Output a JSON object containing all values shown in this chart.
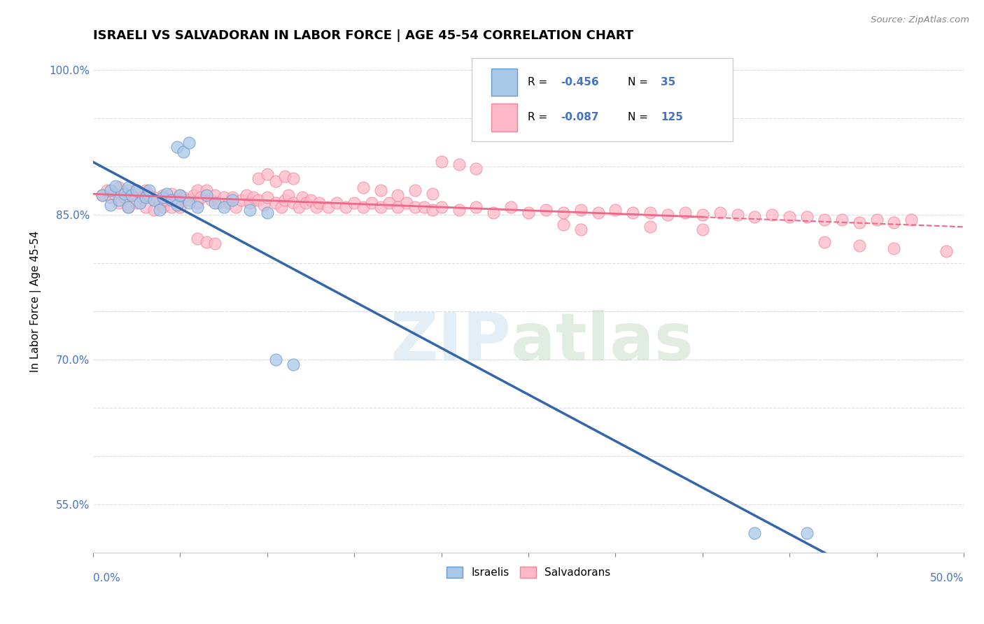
{
  "title": "ISRAELI VS SALVADORAN IN LABOR FORCE | AGE 45-54 CORRELATION CHART",
  "source_text": "Source: ZipAtlas.com",
  "ylabel": "In Labor Force | Age 45-54",
  "xlim": [
    0.0,
    0.5
  ],
  "ylim": [
    0.5,
    1.02
  ],
  "color_israeli": "#A8C8E8",
  "color_israeli_edge": "#6699CC",
  "color_salvadoran": "#FFB8C8",
  "color_salvadoran_edge": "#EE8899",
  "color_israeli_line": "#3366AA",
  "color_salvadoran_line": "#EE6688",
  "color_axis_labels": "#4472C4",
  "watermark_color": "#C8DFF0",
  "israeli_x": [
    0.005,
    0.01,
    0.01,
    0.013,
    0.015,
    0.018,
    0.02,
    0.02,
    0.022,
    0.025,
    0.027,
    0.03,
    0.032,
    0.035,
    0.038,
    0.04,
    0.042,
    0.045,
    0.048,
    0.05,
    0.055,
    0.06,
    0.065,
    0.07,
    0.075,
    0.08,
    0.09,
    0.1,
    0.048,
    0.052,
    0.055,
    0.105,
    0.115,
    0.38,
    0.41
  ],
  "israeli_y": [
    0.87,
    0.875,
    0.86,
    0.88,
    0.865,
    0.872,
    0.878,
    0.858,
    0.87,
    0.875,
    0.862,
    0.868,
    0.875,
    0.865,
    0.855,
    0.868,
    0.872,
    0.865,
    0.86,
    0.87,
    0.862,
    0.858,
    0.87,
    0.862,
    0.858,
    0.865,
    0.855,
    0.852,
    0.92,
    0.915,
    0.925,
    0.7,
    0.695,
    0.52,
    0.52
  ],
  "salvadoran_x": [
    0.005,
    0.008,
    0.01,
    0.012,
    0.015,
    0.015,
    0.018,
    0.02,
    0.02,
    0.022,
    0.025,
    0.025,
    0.028,
    0.03,
    0.03,
    0.032,
    0.035,
    0.035,
    0.038,
    0.04,
    0.04,
    0.042,
    0.045,
    0.045,
    0.048,
    0.05,
    0.05,
    0.052,
    0.055,
    0.058,
    0.06,
    0.06,
    0.062,
    0.065,
    0.068,
    0.07,
    0.072,
    0.075,
    0.078,
    0.08,
    0.082,
    0.085,
    0.088,
    0.09,
    0.092,
    0.095,
    0.098,
    0.1,
    0.105,
    0.108,
    0.11,
    0.112,
    0.115,
    0.118,
    0.12,
    0.122,
    0.125,
    0.128,
    0.13,
    0.135,
    0.14,
    0.145,
    0.15,
    0.155,
    0.16,
    0.165,
    0.17,
    0.175,
    0.18,
    0.185,
    0.19,
    0.195,
    0.2,
    0.21,
    0.22,
    0.23,
    0.24,
    0.25,
    0.26,
    0.27,
    0.28,
    0.29,
    0.3,
    0.31,
    0.32,
    0.33,
    0.34,
    0.35,
    0.36,
    0.37,
    0.38,
    0.39,
    0.4,
    0.41,
    0.42,
    0.43,
    0.44,
    0.45,
    0.46,
    0.47,
    0.095,
    0.1,
    0.105,
    0.11,
    0.115,
    0.2,
    0.21,
    0.22,
    0.155,
    0.165,
    0.175,
    0.185,
    0.195,
    0.27,
    0.28,
    0.32,
    0.35,
    0.42,
    0.44,
    0.46,
    0.49,
    0.06,
    0.065,
    0.07
  ],
  "salvadoran_y": [
    0.87,
    0.875,
    0.868,
    0.872,
    0.878,
    0.862,
    0.868,
    0.875,
    0.858,
    0.87,
    0.875,
    0.862,
    0.868,
    0.875,
    0.858,
    0.87,
    0.868,
    0.855,
    0.862,
    0.87,
    0.858,
    0.865,
    0.872,
    0.858,
    0.865,
    0.87,
    0.858,
    0.868,
    0.865,
    0.87,
    0.875,
    0.862,
    0.868,
    0.875,
    0.865,
    0.87,
    0.862,
    0.868,
    0.862,
    0.868,
    0.858,
    0.865,
    0.87,
    0.862,
    0.868,
    0.865,
    0.86,
    0.868,
    0.862,
    0.858,
    0.865,
    0.87,
    0.862,
    0.858,
    0.868,
    0.862,
    0.865,
    0.858,
    0.862,
    0.858,
    0.862,
    0.858,
    0.862,
    0.858,
    0.862,
    0.858,
    0.862,
    0.858,
    0.862,
    0.858,
    0.858,
    0.855,
    0.858,
    0.855,
    0.858,
    0.852,
    0.858,
    0.852,
    0.855,
    0.852,
    0.855,
    0.852,
    0.855,
    0.852,
    0.852,
    0.85,
    0.852,
    0.85,
    0.852,
    0.85,
    0.848,
    0.85,
    0.848,
    0.848,
    0.845,
    0.845,
    0.842,
    0.845,
    0.842,
    0.845,
    0.888,
    0.892,
    0.885,
    0.89,
    0.888,
    0.905,
    0.902,
    0.898,
    0.878,
    0.875,
    0.87,
    0.875,
    0.872,
    0.84,
    0.835,
    0.838,
    0.835,
    0.822,
    0.818,
    0.815,
    0.812,
    0.825,
    0.822,
    0.82
  ]
}
